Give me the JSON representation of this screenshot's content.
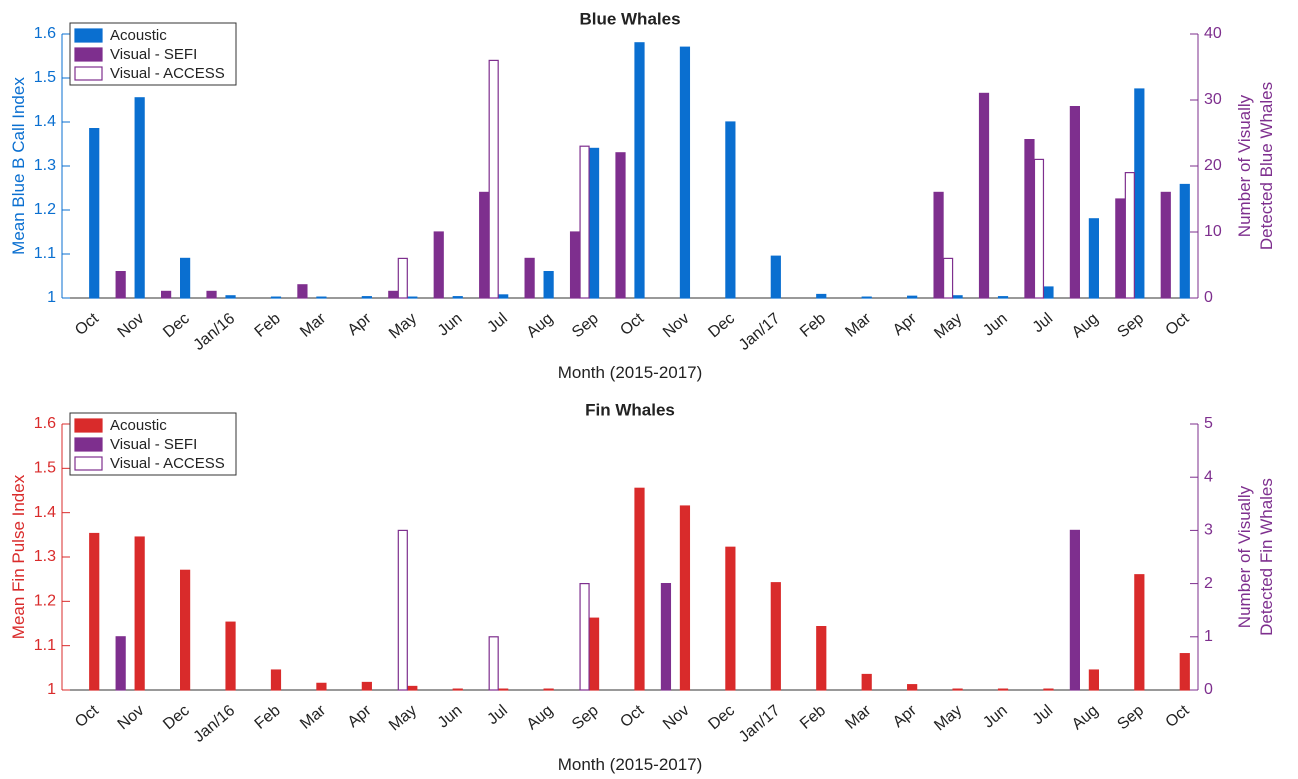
{
  "chart_data": [
    {
      "type": "bar",
      "title": "Blue Whales",
      "xlabel": "Month (2015-2017)",
      "ylabel": "Mean Blue B Call Index",
      "y2label": [
        "Number of Visually",
        "Detected Blue Whales"
      ],
      "categories": [
        "Oct",
        "Nov",
        "Dec",
        "Jan/16",
        "Feb",
        "Mar",
        "Apr",
        "May",
        "Jun",
        "Jul",
        "Aug",
        "Sep",
        "Oct",
        "Nov",
        "Dec",
        "Jan/17",
        "Feb",
        "Mar",
        "Apr",
        "May",
        "Jun",
        "Jul",
        "Aug",
        "Sep",
        "Oct"
      ],
      "series": [
        {
          "name": "Acoustic",
          "color": "#0a6fd0",
          "filled": true,
          "axis": "y",
          "values": [
            1.385,
            1.455,
            1.09,
            1.005,
            1.002,
            1.002,
            1.003,
            1.002,
            1.003,
            1.007,
            1.06,
            1.34,
            1.58,
            1.57,
            1.4,
            1.095,
            1.008,
            1.002,
            1.004,
            1.005,
            1.003,
            1.025,
            1.18,
            1.475,
            1.258
          ]
        },
        {
          "name": "Visual - SEFI",
          "color": "#7e2f8e",
          "filled": true,
          "axis": "y2",
          "values": [
            0,
            4,
            1,
            1,
            0,
            2,
            0,
            1,
            10,
            16,
            6,
            10,
            22,
            0,
            0,
            0,
            0,
            0,
            0,
            16,
            31,
            24,
            29,
            15,
            16
          ]
        },
        {
          "name": "Visual - ACCESS",
          "color": "#7e2f8e",
          "filled": false,
          "axis": "y2",
          "values": [
            0,
            0,
            0,
            0,
            0,
            0,
            0,
            6,
            0,
            36,
            0,
            23,
            0,
            0,
            0,
            0,
            0,
            0,
            0,
            6,
            0,
            21,
            0,
            19,
            0
          ]
        }
      ],
      "ylim": [
        1,
        1.6
      ],
      "yticks": [
        1,
        1.1,
        1.2,
        1.3,
        1.4,
        1.5,
        1.6
      ],
      "y2lim": [
        0,
        40
      ],
      "y2ticks": [
        0,
        10,
        20,
        30,
        40
      ],
      "legend": "upper left"
    },
    {
      "type": "bar",
      "title": "Fin Whales",
      "xlabel": "Month (2015-2017)",
      "ylabel": "Mean Fin Pulse Index",
      "y2label": [
        "Number of Visually",
        "Detected Fin Whales"
      ],
      "categories": [
        "Oct",
        "Nov",
        "Dec",
        "Jan/16",
        "Feb",
        "Mar",
        "Apr",
        "May",
        "Jun",
        "Jul",
        "Aug",
        "Sep",
        "Oct",
        "Nov",
        "Dec",
        "Jan/17",
        "Feb",
        "Mar",
        "Apr",
        "May",
        "Jun",
        "Jul",
        "Aug",
        "Sep",
        "Oct"
      ],
      "series": [
        {
          "name": "Acoustic",
          "color": "#d92b2b",
          "filled": true,
          "axis": "y",
          "values": [
            1.353,
            1.345,
            1.27,
            1.153,
            1.045,
            1.015,
            1.017,
            1.008,
            1.002,
            1.002,
            1.002,
            1.162,
            1.455,
            1.415,
            1.322,
            1.242,
            1.143,
            1.035,
            1.012,
            1.002,
            1.002,
            1.002,
            1.045,
            1.26,
            1.082
          ]
        },
        {
          "name": "Visual - SEFI",
          "color": "#7e2f8e",
          "filled": true,
          "axis": "y2",
          "values": [
            0,
            1,
            0,
            0,
            0,
            0,
            0,
            0,
            0,
            0,
            0,
            0,
            0,
            2,
            0,
            0,
            0,
            0,
            0,
            0,
            0,
            0,
            3,
            0,
            0
          ]
        },
        {
          "name": "Visual - ACCESS",
          "color": "#7e2f8e",
          "filled": false,
          "axis": "y2",
          "values": [
            0,
            0,
            0,
            0,
            0,
            0,
            0,
            3,
            0,
            1,
            0,
            2,
            0,
            0,
            0,
            0,
            0,
            0,
            0,
            0,
            0,
            0,
            0,
            0,
            0
          ]
        }
      ],
      "ylim": [
        1,
        1.6
      ],
      "yticks": [
        1,
        1.1,
        1.2,
        1.3,
        1.4,
        1.5,
        1.6
      ],
      "y2lim": [
        0,
        5
      ],
      "y2ticks": [
        0,
        1,
        2,
        3,
        4,
        5
      ],
      "legend": "upper left"
    }
  ]
}
